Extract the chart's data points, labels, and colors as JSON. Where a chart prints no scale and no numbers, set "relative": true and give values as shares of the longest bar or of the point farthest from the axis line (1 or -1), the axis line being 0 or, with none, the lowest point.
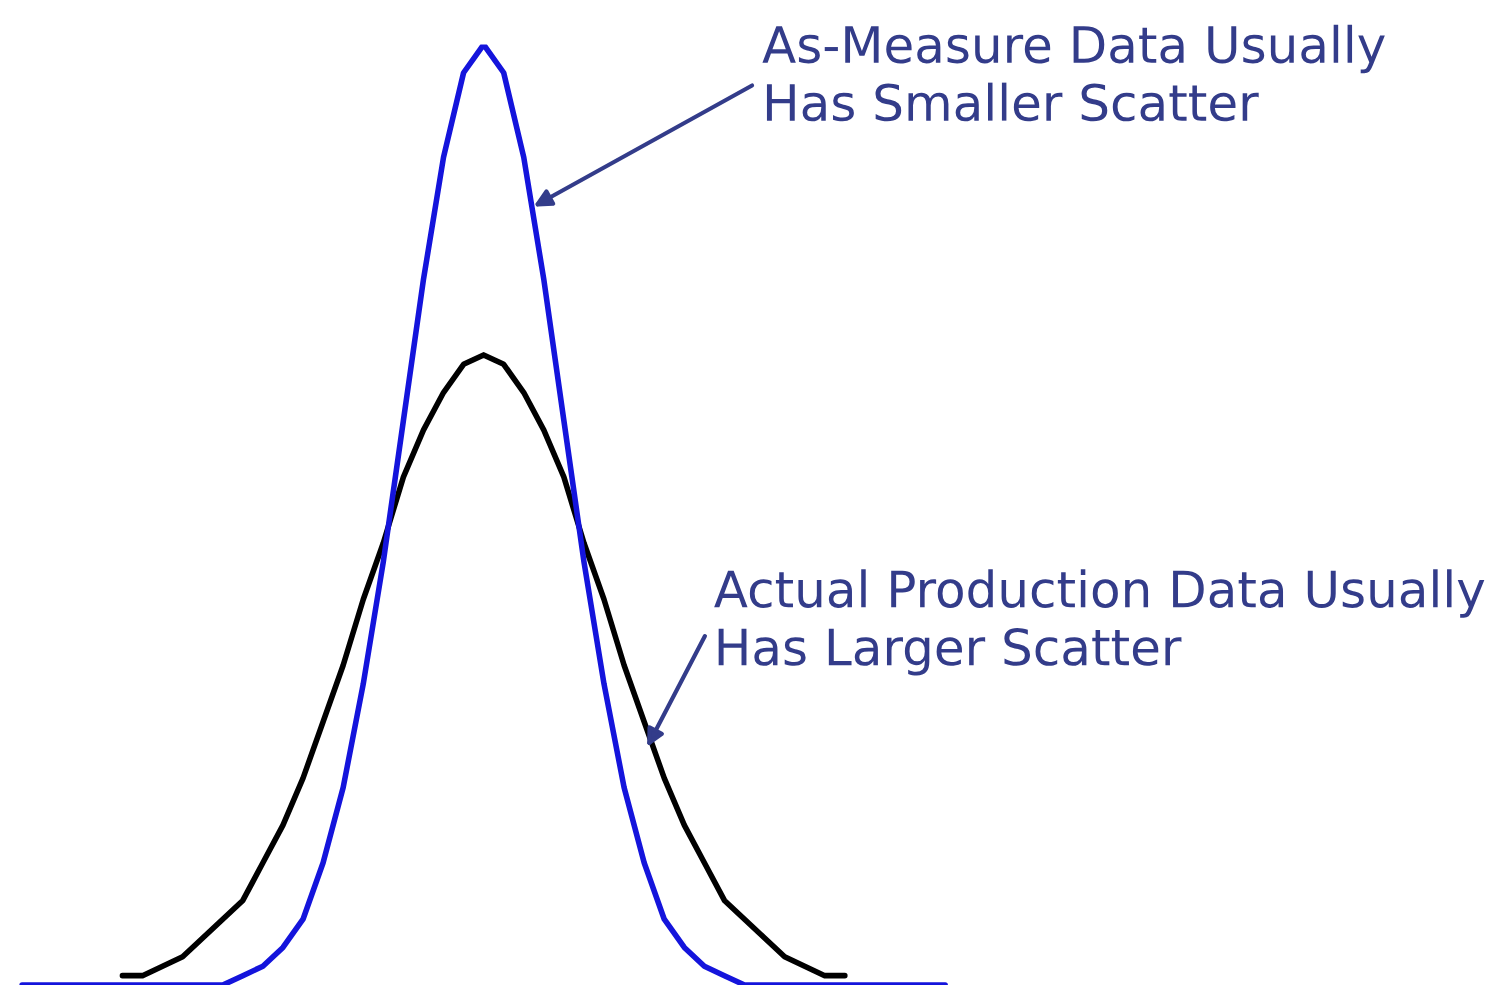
{
  "chart_data": {
    "type": "line",
    "relative": true,
    "categories": [
      null,
      null,
      null,
      null,
      null,
      null,
      null,
      null,
      null,
      null,
      null,
      null,
      null,
      null,
      null,
      null,
      null,
      null,
      null,
      null,
      null,
      null,
      null,
      null,
      null,
      null,
      null,
      null,
      null,
      null,
      null,
      null,
      null,
      null,
      null,
      null,
      null,
      null,
      null,
      null,
      null,
      null,
      null,
      null,
      null,
      null,
      null
    ],
    "series": [
      {
        "color": "#1414dc",
        "values": [
          0,
          0,
          0,
          0,
          0,
          0,
          0,
          0,
          0,
          0,
          0,
          0.01,
          0.02,
          0.04,
          0.07,
          0.13,
          0.21,
          0.32,
          0.45,
          0.6,
          0.75,
          0.88,
          0.97,
          1.0,
          0.97,
          0.88,
          0.75,
          0.6,
          0.45,
          0.32,
          0.21,
          0.13,
          0.07,
          0.04,
          0.02,
          0.01,
          0,
          0,
          0,
          0,
          0,
          0,
          0,
          0,
          0,
          0,
          0
        ]
      },
      {
        "color": "#000000",
        "values": [
          null,
          null,
          null,
          null,
          null,
          0.01,
          0.01,
          0.02,
          0.03,
          0.05,
          0.07,
          0.09,
          0.13,
          0.17,
          0.22,
          0.28,
          0.34,
          0.41,
          0.47,
          0.54,
          0.59,
          0.63,
          0.66,
          0.67,
          0.66,
          0.63,
          0.59,
          0.54,
          0.47,
          0.41,
          0.34,
          0.28,
          0.22,
          0.17,
          0.13,
          0.09,
          0.07,
          0.05,
          0.03,
          0.02,
          0.01,
          0.01,
          null,
          null,
          null,
          null,
          null
        ]
      }
    ],
    "annotations": [
      "As-Measure Data Usually\nHas Smaller Scatter",
      "Actual Production Data Usually\nHas Larger Scatter"
    ]
  }
}
